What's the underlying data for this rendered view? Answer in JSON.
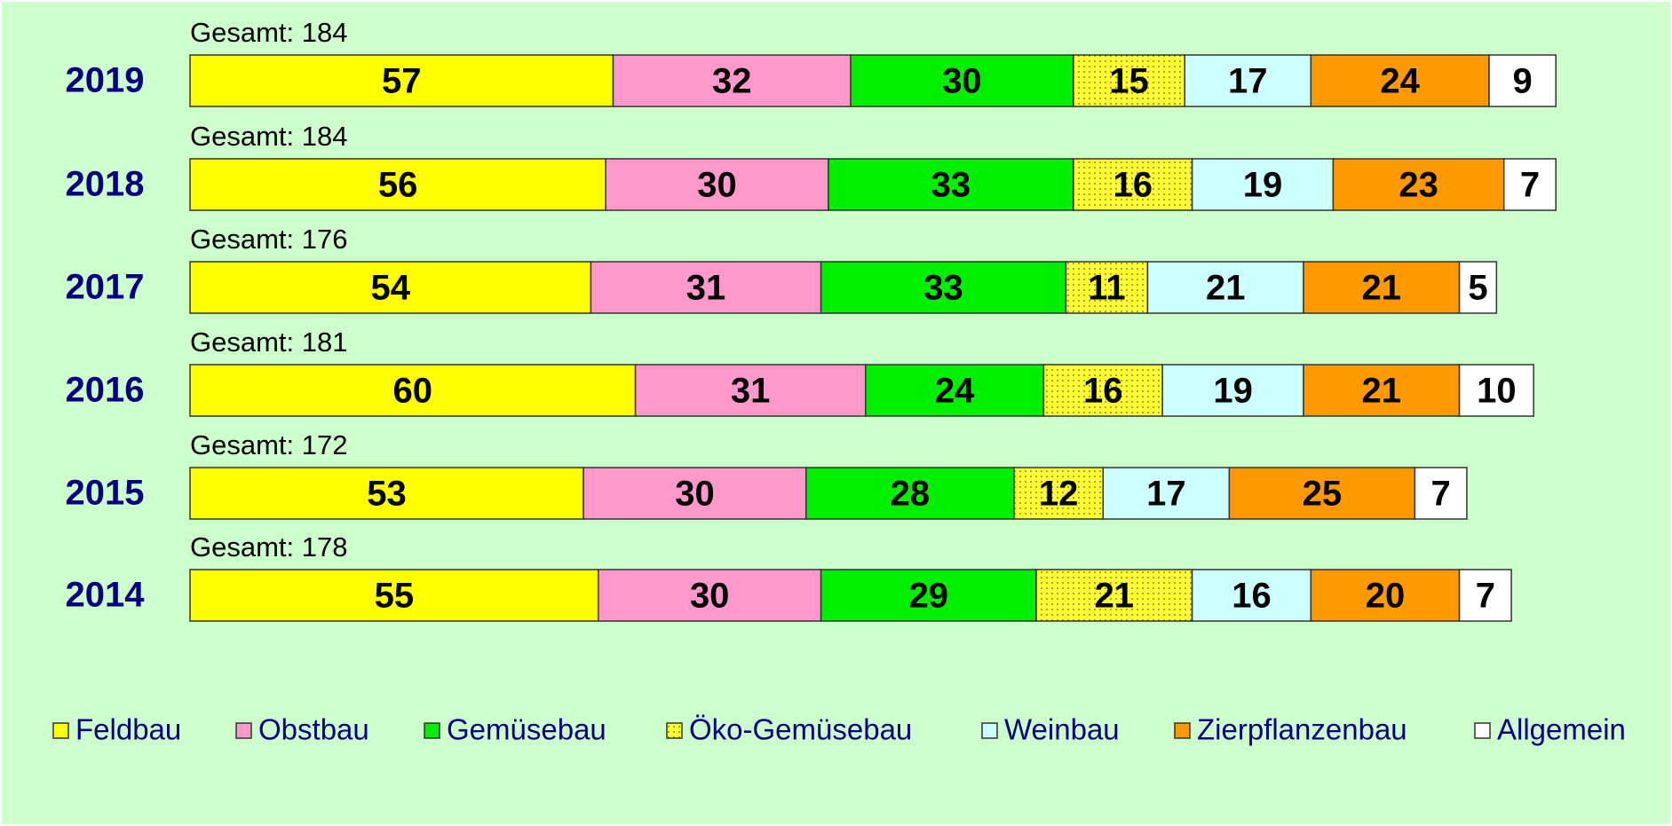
{
  "chart_data": {
    "type": "stacked-bar-horizontal",
    "categories": [
      "2019",
      "2018",
      "2017",
      "2016",
      "2015",
      "2014"
    ],
    "annotations": [
      "Gesamt: 184",
      "Gesamt: 184",
      "Gesamt: 176",
      "Gesamt: 181",
      "Gesamt: 172",
      "Gesamt: 178"
    ],
    "series": [
      {
        "name": "Feldbau",
        "color": "#ffff00",
        "values": [
          57,
          56,
          54,
          60,
          53,
          55
        ]
      },
      {
        "name": "Obstbau",
        "color": "#ff99cc",
        "values": [
          32,
          30,
          31,
          31,
          30,
          30
        ]
      },
      {
        "name": "Gemüsebau",
        "color": "#00ee00",
        "values": [
          30,
          33,
          33,
          24,
          28,
          29
        ]
      },
      {
        "name": "Öko-Gemüsebau",
        "color": "#ffff33",
        "pattern": "dots",
        "values": [
          15,
          16,
          11,
          16,
          12,
          21
        ]
      },
      {
        "name": "Weinbau",
        "color": "#ccffff",
        "values": [
          17,
          19,
          21,
          19,
          17,
          16
        ]
      },
      {
        "name": "Zierpflanzenbau",
        "color": "#ff9900",
        "values": [
          24,
          23,
          21,
          21,
          25,
          20
        ]
      },
      {
        "name": "Allgemein",
        "color": "#ffffff",
        "values": [
          9,
          7,
          5,
          10,
          7,
          7
        ]
      }
    ],
    "legend": "bottom"
  }
}
